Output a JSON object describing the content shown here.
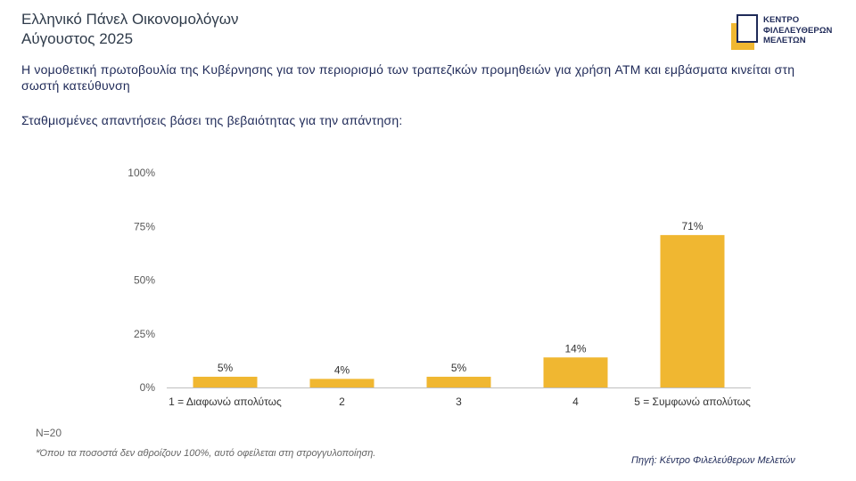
{
  "header": {
    "title_line1": "Ελληνικό Πάνελ Οικονομολόγων",
    "title_line2": "Αύγουστος 2025"
  },
  "logo": {
    "line1": "ΚΕΝΤΡΟ",
    "line2": "ΦΙΛΕΛΕΥΘΕΡΩΝ",
    "line3": "ΜΕΛΕΤΩΝ",
    "accent_color": "#f0b731",
    "brand_color": "#1f2a58"
  },
  "question": "Η νομοθετική πρωτοβουλία της Κυβέρνησης για τον περιορισμό των τραπεζικών προμηθειών για χρήση ATM και εμβάσματα κινείται στη σωστή κατεύθυνση",
  "subquestion": "Σταθμισμένες απαντήσεις βάσει της βεβαιότητας για την απάντηση:",
  "chart_data": {
    "type": "bar",
    "categories": [
      "1 = Διαφωνώ απολύτως",
      "2",
      "3",
      "4",
      "5 = Συμφωνώ απολύτως"
    ],
    "values": [
      5,
      4,
      5,
      14,
      71
    ],
    "value_labels": [
      "5%",
      "4%",
      "5%",
      "14%",
      "71%"
    ],
    "yticks": [
      "0%",
      "25%",
      "50%",
      "75%",
      "100%"
    ],
    "ylim": [
      0,
      100
    ],
    "grid": false,
    "bar_color": "#f0b731"
  },
  "footer": {
    "n": "N=20",
    "footnote": "*Όπου τα ποσοστά δεν αθροίζουν 100%, αυτό οφείλεται στη στρογγυλοποίηση.",
    "source": "Πηγή: Κέντρο Φιλελεύθερων Μελετών"
  }
}
